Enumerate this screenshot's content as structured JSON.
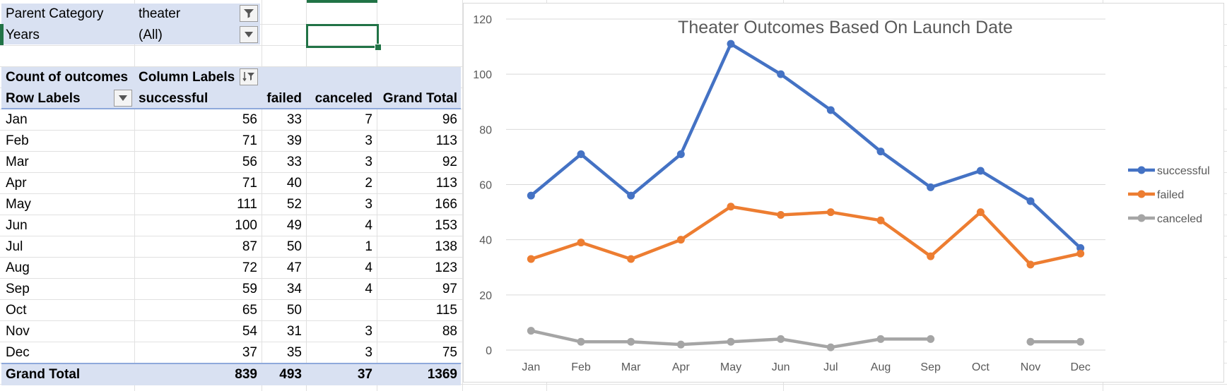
{
  "filters": [
    {
      "label": "Parent Category",
      "value": "theater"
    },
    {
      "label": "Years",
      "value": "(All)"
    }
  ],
  "pivot": {
    "corner_label": "Count of outcomes",
    "column_labels_header": "Column Labels",
    "row_labels_header": "Row Labels",
    "columns": [
      "successful",
      "failed",
      "canceled",
      "Grand Total"
    ],
    "rows": [
      {
        "label": "Jan",
        "values": [
          "56",
          "33",
          "7",
          "96"
        ]
      },
      {
        "label": "Feb",
        "values": [
          "71",
          "39",
          "3",
          "113"
        ]
      },
      {
        "label": "Mar",
        "values": [
          "56",
          "33",
          "3",
          "92"
        ]
      },
      {
        "label": "Apr",
        "values": [
          "71",
          "40",
          "2",
          "113"
        ]
      },
      {
        "label": "May",
        "values": [
          "111",
          "52",
          "3",
          "166"
        ]
      },
      {
        "label": "Jun",
        "values": [
          "100",
          "49",
          "4",
          "153"
        ]
      },
      {
        "label": "Jul",
        "values": [
          "87",
          "50",
          "1",
          "138"
        ]
      },
      {
        "label": "Aug",
        "values": [
          "72",
          "47",
          "4",
          "123"
        ]
      },
      {
        "label": "Sep",
        "values": [
          "59",
          "34",
          "4",
          "97"
        ]
      },
      {
        "label": "Oct",
        "values": [
          "65",
          "50",
          "",
          "115"
        ]
      },
      {
        "label": "Nov",
        "values": [
          "54",
          "31",
          "3",
          "88"
        ]
      },
      {
        "label": "Dec",
        "values": [
          "37",
          "35",
          "3",
          "75"
        ]
      }
    ],
    "grand_total": {
      "label": "Grand Total",
      "values": [
        "839",
        "493",
        "37",
        "1369"
      ]
    }
  },
  "chart_data": {
    "type": "line",
    "title": "Theater Outcomes Based On Launch Date",
    "categories": [
      "Jan",
      "Feb",
      "Mar",
      "Apr",
      "May",
      "Jun",
      "Jul",
      "Aug",
      "Sep",
      "Oct",
      "Nov",
      "Dec"
    ],
    "series": [
      {
        "name": "successful",
        "color": "#4472c4",
        "values": [
          56,
          71,
          56,
          71,
          111,
          100,
          87,
          72,
          59,
          65,
          54,
          37
        ]
      },
      {
        "name": "failed",
        "color": "#ed7d31",
        "values": [
          33,
          39,
          33,
          40,
          52,
          49,
          50,
          47,
          34,
          50,
          31,
          35
        ]
      },
      {
        "name": "canceled",
        "color": "#a5a5a5",
        "values": [
          7,
          3,
          3,
          2,
          3,
          4,
          1,
          4,
          4,
          null,
          3,
          3
        ]
      }
    ],
    "yticks": [
      0,
      20,
      40,
      60,
      80,
      100,
      120
    ],
    "ylim": [
      0,
      120
    ],
    "grid": true,
    "legend_position": "right"
  }
}
